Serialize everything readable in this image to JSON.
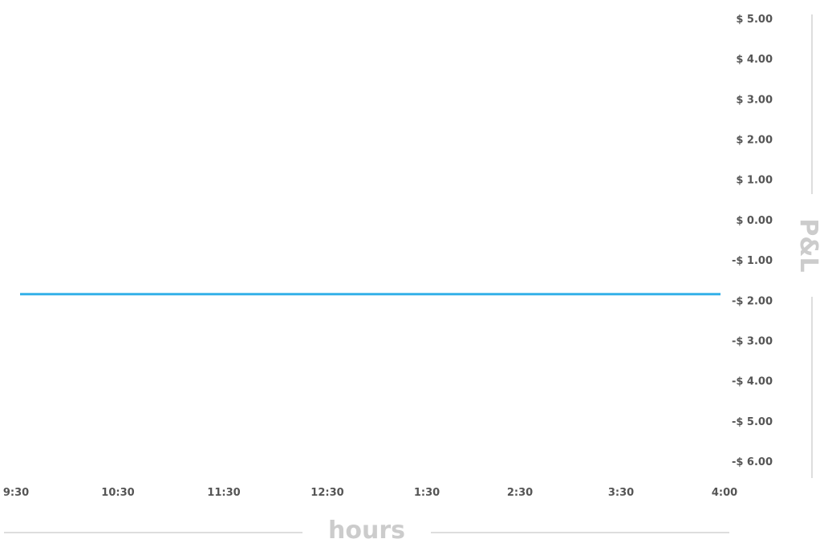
{
  "chart_data": {
    "type": "line",
    "xlabel": "hours",
    "ylabel": "P&L",
    "x": [
      "9:30",
      "10:30",
      "11:30",
      "12:30",
      "1:30",
      "2:30",
      "3:30",
      "4:00"
    ],
    "series": [
      {
        "values": [
          -1.85,
          -1.85,
          -1.85,
          -1.85,
          -1.85,
          -1.85,
          -1.85,
          -1.85
        ]
      }
    ],
    "ylim": [
      -6,
      5
    ],
    "yticks": [
      {
        "value": 5,
        "label": "$ 5.00"
      },
      {
        "value": 4,
        "label": "$ 4.00"
      },
      {
        "value": 3,
        "label": "$ 3.00"
      },
      {
        "value": 2,
        "label": "$ 2.00"
      },
      {
        "value": 1,
        "label": "$ 1.00"
      },
      {
        "value": 0,
        "label": "$ 0.00"
      },
      {
        "value": -1,
        "label": "-$ 1.00"
      },
      {
        "value": -2,
        "label": "-$ 2.00"
      },
      {
        "value": -3,
        "label": "-$ 3.00"
      },
      {
        "value": -4,
        "label": "-$ 4.00"
      },
      {
        "value": -5,
        "label": "-$ 5.00"
      },
      {
        "value": -6,
        "label": "-$ 6.00"
      }
    ],
    "grid": false,
    "legend": "none",
    "y_axis_position": "right",
    "line_color": "#33b0e8",
    "title_color": "#cccccc",
    "tick_color": "#555555"
  }
}
